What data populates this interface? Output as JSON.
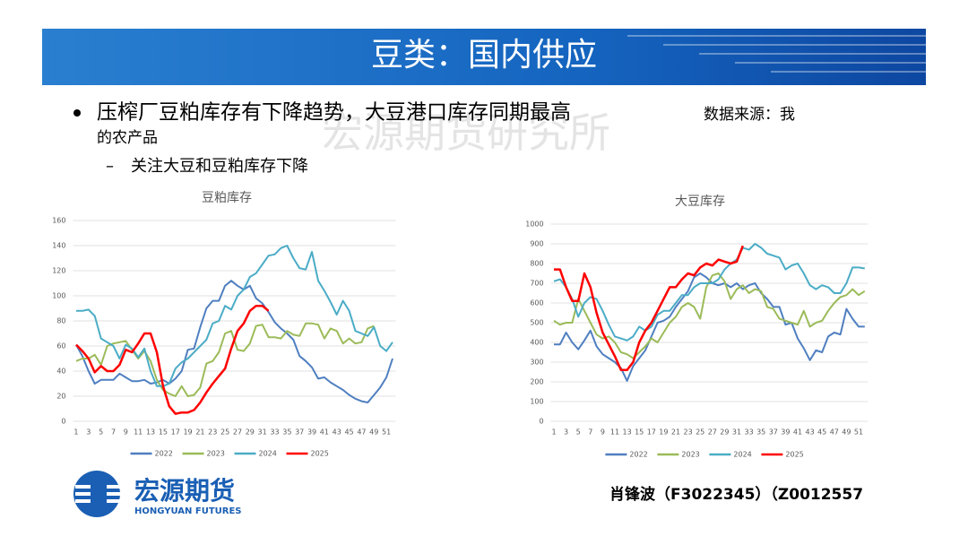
{
  "header": {
    "title": "豆类：国内供应"
  },
  "bullets": {
    "main": "压榨厂豆粕库存有下降趋势，大豆港口库存同期最高",
    "source_lines": [
      "数据来源：我",
      "的农产品"
    ],
    "sub": "关注大豆和豆粕库存下降"
  },
  "watermark": "宏源期货研究所",
  "footer": {
    "logo_cn": "宏源期货",
    "logo_en": "HONGYUAN FUTURES",
    "author": "肖锋波（F3022345）（Z0012557"
  },
  "chart_data": [
    {
      "type": "line",
      "title": "豆粕库存",
      "categories": [
        1,
        null,
        3,
        null,
        5,
        null,
        7,
        null,
        9,
        null,
        11,
        null,
        13,
        null,
        15,
        null,
        17,
        null,
        19,
        null,
        21,
        null,
        23,
        null,
        25,
        null,
        27,
        null,
        29,
        null,
        31,
        null,
        33,
        null,
        35,
        null,
        37,
        null,
        39,
        null,
        41,
        null,
        43,
        null,
        45,
        null,
        47,
        null,
        49,
        null,
        51,
        null
      ],
      "ylim": [
        0,
        160
      ],
      "yticks": [
        0,
        20,
        40,
        60,
        80,
        100,
        120,
        140,
        160
      ],
      "grid": true,
      "legend": "bottom",
      "series": [
        {
          "name": "2022",
          "color": "#4f7fc0",
          "values": [
            61,
            52,
            40,
            30,
            33,
            33,
            33,
            38,
            35,
            32,
            32,
            33,
            30,
            31,
            33,
            30,
            34,
            40,
            57,
            58,
            75,
            90,
            96,
            96,
            108,
            112,
            108,
            105,
            108,
            98,
            94,
            87,
            79,
            74,
            70,
            65,
            52,
            48,
            43,
            34,
            35,
            31,
            28,
            25,
            21,
            18,
            16,
            15,
            21,
            27,
            35,
            50
          ]
        },
        {
          "name": "2023",
          "color": "#9bbb59",
          "values": [
            48,
            50,
            50,
            53,
            45,
            60,
            62,
            63,
            64,
            57,
            50,
            56,
            48,
            33,
            25,
            22,
            20,
            28,
            20,
            21,
            27,
            46,
            48,
            55,
            70,
            72,
            57,
            56,
            62,
            76,
            77,
            67,
            67,
            66,
            72,
            69,
            68,
            78,
            78,
            77,
            66,
            74,
            72,
            62,
            66,
            62,
            63,
            74,
            76,
            null,
            null,
            null
          ]
        },
        {
          "name": "2024",
          "color": "#4bacc6",
          "values": [
            88,
            88,
            89,
            84,
            66,
            63,
            60,
            50,
            61,
            58,
            51,
            58,
            40,
            28,
            28,
            30,
            42,
            47,
            50,
            55,
            60,
            65,
            78,
            80,
            92,
            89,
            100,
            105,
            115,
            118,
            125,
            132,
            133,
            138,
            140,
            130,
            122,
            121,
            135,
            112,
            104,
            95,
            85,
            96,
            88,
            72,
            70,
            68,
            75,
            60,
            56,
            63
          ]
        },
        {
          "name": "2025",
          "color": "#ff0000",
          "values": [
            61,
            56,
            50,
            39,
            44,
            40,
            40,
            45,
            57,
            55,
            62,
            70,
            70,
            55,
            28,
            12,
            6,
            7,
            7,
            9,
            15,
            23,
            30,
            36,
            42,
            58,
            72,
            78,
            88,
            92,
            92,
            88,
            null,
            null,
            null,
            null,
            null,
            null,
            null,
            null,
            null,
            null,
            null,
            null,
            null,
            null,
            null,
            null,
            null,
            null,
            null,
            null
          ]
        }
      ]
    },
    {
      "type": "line",
      "title": "大豆库存",
      "categories": [
        1,
        null,
        3,
        null,
        5,
        null,
        7,
        null,
        9,
        null,
        11,
        null,
        13,
        null,
        15,
        null,
        17,
        null,
        19,
        null,
        21,
        null,
        23,
        null,
        25,
        null,
        27,
        null,
        29,
        null,
        31,
        null,
        33,
        null,
        35,
        null,
        37,
        null,
        39,
        null,
        41,
        null,
        43,
        null,
        45,
        null,
        47,
        null,
        49,
        null,
        51,
        null
      ],
      "ylim": [
        0,
        1000
      ],
      "yticks": [
        0,
        100,
        200,
        300,
        400,
        500,
        600,
        700,
        800,
        900,
        1000
      ],
      "grid": true,
      "legend": "bottom",
      "series": [
        {
          "name": "2022",
          "color": "#4f7fc0",
          "values": [
            390,
            390,
            450,
            400,
            365,
            410,
            460,
            380,
            340,
            320,
            300,
            270,
            205,
            280,
            320,
            360,
            430,
            500,
            510,
            530,
            580,
            620,
            660,
            730,
            750,
            730,
            700,
            690,
            700,
            680,
            700,
            670,
            690,
            700,
            650,
            620,
            580,
            580,
            490,
            500,
            420,
            370,
            310,
            360,
            350,
            430,
            450,
            440,
            570,
            520,
            480,
            480
          ]
        },
        {
          "name": "2023",
          "color": "#9bbb59",
          "values": [
            510,
            490,
            500,
            500,
            620,
            560,
            500,
            440,
            420,
            430,
            400,
            350,
            340,
            320,
            350,
            380,
            420,
            400,
            450,
            500,
            530,
            580,
            600,
            580,
            520,
            680,
            740,
            750,
            710,
            620,
            670,
            690,
            650,
            670,
            660,
            580,
            570,
            520,
            510,
            500,
            490,
            560,
            480,
            500,
            510,
            560,
            600,
            630,
            640,
            670,
            640,
            660
          ]
        },
        {
          "name": "2024",
          "color": "#4bacc6",
          "values": [
            710,
            720,
            680,
            620,
            530,
            600,
            630,
            620,
            560,
            490,
            430,
            420,
            410,
            430,
            480,
            460,
            480,
            540,
            560,
            560,
            600,
            640,
            640,
            680,
            700,
            700,
            700,
            720,
            770,
            800,
            820,
            880,
            870,
            900,
            880,
            850,
            840,
            830,
            770,
            790,
            800,
            750,
            690,
            670,
            690,
            680,
            650,
            650,
            700,
            780,
            780,
            775
          ]
        },
        {
          "name": "2025",
          "color": "#ff0000",
          "values": [
            770,
            770,
            680,
            610,
            610,
            750,
            680,
            550,
            450,
            390,
            330,
            260,
            260,
            300,
            400,
            460,
            500,
            560,
            620,
            680,
            680,
            720,
            750,
            740,
            780,
            800,
            790,
            820,
            810,
            800,
            810,
            890,
            null,
            null,
            null,
            null,
            null,
            null,
            null,
            null,
            null,
            null,
            null,
            null,
            null,
            null,
            null,
            null,
            null,
            null,
            null,
            null
          ]
        }
      ]
    }
  ]
}
